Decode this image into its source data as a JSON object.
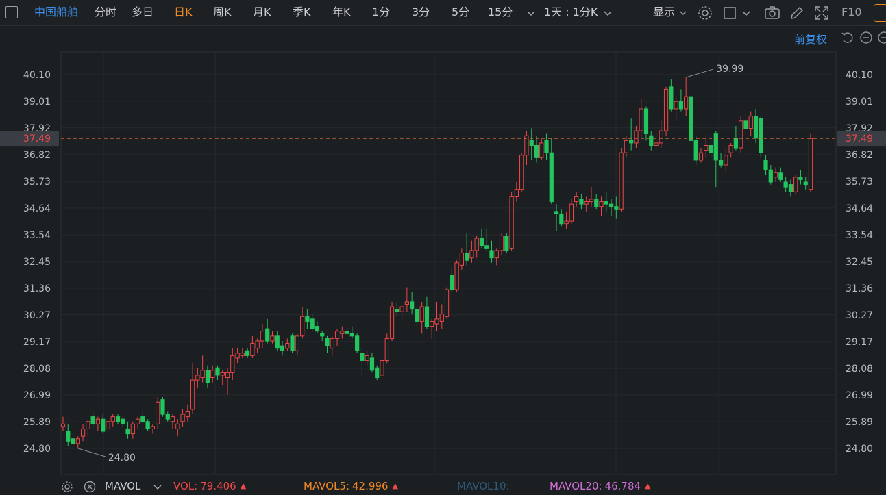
{
  "toolbar": {
    "stock_name": "中国船舶",
    "tabs": [
      "分时",
      "多日",
      "日K",
      "周K",
      "月K",
      "季K",
      "年K",
      "1分",
      "3分",
      "5分",
      "15分"
    ],
    "active_tab": "日K",
    "period_combo": "1天 : 1分K",
    "display_label": "显示",
    "f10_label": "F10"
  },
  "adjust_label": "前复权",
  "chart_data": {
    "type": "candlestick",
    "y_ticks": [
      "40.10",
      "39.01",
      "37.92",
      "36.82",
      "35.73",
      "34.64",
      "33.54",
      "32.45",
      "31.36",
      "30.27",
      "29.17",
      "28.08",
      "26.99",
      "25.89",
      "24.80"
    ],
    "ylim": [
      24.8,
      40.1
    ],
    "last_price": "37.49",
    "high_label": "39.99",
    "low_label": "24.80",
    "colors": {
      "up": "#f04747",
      "down": "#22c55e"
    },
    "candles": [
      {
        "o": 25.7,
        "h": 26.1,
        "l": 25.5,
        "c": 25.8
      },
      {
        "o": 25.5,
        "h": 25.8,
        "l": 24.9,
        "c": 25.1
      },
      {
        "o": 25.2,
        "h": 25.6,
        "l": 24.9,
        "c": 25.0
      },
      {
        "o": 25.0,
        "h": 25.3,
        "l": 24.8,
        "c": 25.2
      },
      {
        "o": 25.3,
        "h": 25.8,
        "l": 25.1,
        "c": 25.6
      },
      {
        "o": 25.6,
        "h": 26.0,
        "l": 25.3,
        "c": 25.9
      },
      {
        "o": 26.1,
        "h": 26.3,
        "l": 25.7,
        "c": 25.8
      },
      {
        "o": 25.8,
        "h": 26.1,
        "l": 25.5,
        "c": 26.0
      },
      {
        "o": 26.0,
        "h": 26.2,
        "l": 25.4,
        "c": 25.5
      },
      {
        "o": 25.6,
        "h": 26.0,
        "l": 25.4,
        "c": 25.9
      },
      {
        "o": 25.9,
        "h": 26.2,
        "l": 25.7,
        "c": 26.1
      },
      {
        "o": 26.1,
        "h": 26.2,
        "l": 25.8,
        "c": 25.9
      },
      {
        "o": 26.0,
        "h": 26.1,
        "l": 25.7,
        "c": 25.8
      },
      {
        "o": 25.6,
        "h": 25.9,
        "l": 25.2,
        "c": 25.4
      },
      {
        "o": 25.4,
        "h": 25.9,
        "l": 25.2,
        "c": 25.8
      },
      {
        "o": 25.8,
        "h": 26.1,
        "l": 25.6,
        "c": 26.0
      },
      {
        "o": 26.1,
        "h": 26.3,
        "l": 25.8,
        "c": 25.9
      },
      {
        "o": 25.9,
        "h": 26.0,
        "l": 25.5,
        "c": 25.6
      },
      {
        "o": 25.6,
        "h": 25.8,
        "l": 25.4,
        "c": 25.7
      },
      {
        "o": 25.8,
        "h": 26.9,
        "l": 25.6,
        "c": 26.7
      },
      {
        "o": 26.8,
        "h": 26.9,
        "l": 26.1,
        "c": 26.2
      },
      {
        "o": 26.2,
        "h": 26.3,
        "l": 25.9,
        "c": 26.0
      },
      {
        "o": 25.9,
        "h": 26.2,
        "l": 25.6,
        "c": 26.1
      },
      {
        "o": 25.6,
        "h": 26.0,
        "l": 25.3,
        "c": 25.8
      },
      {
        "o": 25.9,
        "h": 26.4,
        "l": 25.7,
        "c": 26.2
      },
      {
        "o": 26.1,
        "h": 26.6,
        "l": 25.9,
        "c": 26.3
      },
      {
        "o": 26.4,
        "h": 28.3,
        "l": 26.2,
        "c": 27.6
      },
      {
        "o": 27.6,
        "h": 28.1,
        "l": 27.3,
        "c": 27.8
      },
      {
        "o": 27.7,
        "h": 28.6,
        "l": 27.5,
        "c": 28.0
      },
      {
        "o": 28.0,
        "h": 28.2,
        "l": 27.3,
        "c": 27.5
      },
      {
        "o": 27.7,
        "h": 28.2,
        "l": 27.5,
        "c": 28.0
      },
      {
        "o": 28.1,
        "h": 28.2,
        "l": 27.6,
        "c": 27.8
      },
      {
        "o": 27.8,
        "h": 28.0,
        "l": 27.4,
        "c": 27.9
      },
      {
        "o": 27.7,
        "h": 28.1,
        "l": 27.0,
        "c": 27.9
      },
      {
        "o": 27.9,
        "h": 28.9,
        "l": 27.6,
        "c": 28.6
      },
      {
        "o": 28.5,
        "h": 28.9,
        "l": 28.3,
        "c": 28.7
      },
      {
        "o": 28.6,
        "h": 28.9,
        "l": 28.5,
        "c": 28.7
      },
      {
        "o": 28.8,
        "h": 28.9,
        "l": 28.5,
        "c": 28.6
      },
      {
        "o": 28.6,
        "h": 29.4,
        "l": 28.5,
        "c": 29.1
      },
      {
        "o": 28.9,
        "h": 29.3,
        "l": 28.7,
        "c": 29.2
      },
      {
        "o": 29.2,
        "h": 29.9,
        "l": 28.9,
        "c": 29.6
      },
      {
        "o": 29.7,
        "h": 30.1,
        "l": 29.1,
        "c": 29.2
      },
      {
        "o": 29.2,
        "h": 29.6,
        "l": 29.1,
        "c": 29.4
      },
      {
        "o": 29.4,
        "h": 29.6,
        "l": 28.8,
        "c": 28.9
      },
      {
        "o": 29.0,
        "h": 29.2,
        "l": 28.6,
        "c": 28.8
      },
      {
        "o": 28.9,
        "h": 29.3,
        "l": 28.8,
        "c": 29.1
      },
      {
        "o": 29.4,
        "h": 29.5,
        "l": 28.7,
        "c": 28.8
      },
      {
        "o": 28.8,
        "h": 29.5,
        "l": 28.6,
        "c": 29.4
      },
      {
        "o": 29.4,
        "h": 30.6,
        "l": 29.3,
        "c": 30.2
      },
      {
        "o": 30.2,
        "h": 30.5,
        "l": 29.7,
        "c": 30.0
      },
      {
        "o": 30.1,
        "h": 30.3,
        "l": 29.6,
        "c": 29.7
      },
      {
        "o": 29.8,
        "h": 30.0,
        "l": 29.5,
        "c": 29.6
      },
      {
        "o": 29.5,
        "h": 29.6,
        "l": 29.2,
        "c": 29.4
      },
      {
        "o": 29.3,
        "h": 29.4,
        "l": 28.7,
        "c": 29.0
      },
      {
        "o": 28.9,
        "h": 29.4,
        "l": 28.6,
        "c": 29.3
      },
      {
        "o": 29.3,
        "h": 29.7,
        "l": 29.0,
        "c": 29.6
      },
      {
        "o": 29.5,
        "h": 29.8,
        "l": 29.3,
        "c": 29.6
      },
      {
        "o": 29.6,
        "h": 29.8,
        "l": 29.4,
        "c": 29.5
      },
      {
        "o": 29.5,
        "h": 29.8,
        "l": 29.3,
        "c": 29.4
      },
      {
        "o": 29.4,
        "h": 29.5,
        "l": 28.7,
        "c": 28.8
      },
      {
        "o": 28.7,
        "h": 28.9,
        "l": 27.8,
        "c": 28.4
      },
      {
        "o": 28.4,
        "h": 28.8,
        "l": 28.2,
        "c": 28.6
      },
      {
        "o": 28.5,
        "h": 28.7,
        "l": 27.9,
        "c": 28.0
      },
      {
        "o": 28.1,
        "h": 28.2,
        "l": 27.6,
        "c": 27.7
      },
      {
        "o": 27.8,
        "h": 28.5,
        "l": 27.7,
        "c": 28.4
      },
      {
        "o": 28.4,
        "h": 29.5,
        "l": 28.3,
        "c": 29.3
      },
      {
        "o": 29.3,
        "h": 30.8,
        "l": 29.2,
        "c": 30.6
      },
      {
        "o": 30.5,
        "h": 30.8,
        "l": 30.2,
        "c": 30.4
      },
      {
        "o": 30.4,
        "h": 30.7,
        "l": 30.1,
        "c": 30.6
      },
      {
        "o": 30.7,
        "h": 31.4,
        "l": 30.4,
        "c": 30.8
      },
      {
        "o": 30.8,
        "h": 31.2,
        "l": 30.3,
        "c": 30.5
      },
      {
        "o": 30.5,
        "h": 30.6,
        "l": 29.8,
        "c": 30.0
      },
      {
        "o": 30.0,
        "h": 30.8,
        "l": 29.5,
        "c": 30.6
      },
      {
        "o": 30.6,
        "h": 31.0,
        "l": 29.7,
        "c": 29.8
      },
      {
        "o": 29.8,
        "h": 30.1,
        "l": 29.3,
        "c": 30.0
      },
      {
        "o": 29.9,
        "h": 30.8,
        "l": 29.6,
        "c": 30.1
      },
      {
        "o": 30.0,
        "h": 30.7,
        "l": 29.7,
        "c": 30.3
      },
      {
        "o": 30.2,
        "h": 31.4,
        "l": 30.1,
        "c": 31.3
      },
      {
        "o": 31.9,
        "h": 32.2,
        "l": 31.2,
        "c": 31.3
      },
      {
        "o": 31.3,
        "h": 32.5,
        "l": 31.2,
        "c": 32.4
      },
      {
        "o": 32.3,
        "h": 33.0,
        "l": 32.1,
        "c": 32.8
      },
      {
        "o": 32.8,
        "h": 33.6,
        "l": 32.3,
        "c": 32.5
      },
      {
        "o": 32.6,
        "h": 33.3,
        "l": 32.4,
        "c": 32.9
      },
      {
        "o": 32.9,
        "h": 33.5,
        "l": 32.6,
        "c": 33.4
      },
      {
        "o": 33.4,
        "h": 33.8,
        "l": 33.0,
        "c": 33.1
      },
      {
        "o": 33.1,
        "h": 33.8,
        "l": 32.9,
        "c": 33.0
      },
      {
        "o": 32.9,
        "h": 33.3,
        "l": 32.4,
        "c": 32.6
      },
      {
        "o": 32.6,
        "h": 33.0,
        "l": 32.3,
        "c": 32.9
      },
      {
        "o": 32.9,
        "h": 33.6,
        "l": 32.7,
        "c": 33.5
      },
      {
        "o": 33.5,
        "h": 33.6,
        "l": 32.8,
        "c": 32.9
      },
      {
        "o": 33.0,
        "h": 35.3,
        "l": 32.9,
        "c": 35.1
      },
      {
        "o": 35.1,
        "h": 35.7,
        "l": 34.9,
        "c": 35.4
      },
      {
        "o": 35.4,
        "h": 36.9,
        "l": 35.3,
        "c": 36.8
      },
      {
        "o": 36.8,
        "h": 37.8,
        "l": 36.4,
        "c": 37.6
      },
      {
        "o": 37.4,
        "h": 37.9,
        "l": 36.6,
        "c": 37.2
      },
      {
        "o": 37.2,
        "h": 37.6,
        "l": 36.5,
        "c": 36.7
      },
      {
        "o": 36.7,
        "h": 37.5,
        "l": 36.6,
        "c": 37.3
      },
      {
        "o": 37.4,
        "h": 37.7,
        "l": 36.6,
        "c": 36.9
      },
      {
        "o": 36.9,
        "h": 37.5,
        "l": 34.8,
        "c": 34.9
      },
      {
        "o": 34.5,
        "h": 34.8,
        "l": 33.7,
        "c": 34.4
      },
      {
        "o": 34.4,
        "h": 34.6,
        "l": 33.9,
        "c": 34.0
      },
      {
        "o": 34.0,
        "h": 34.5,
        "l": 33.8,
        "c": 34.1
      },
      {
        "o": 34.1,
        "h": 35.0,
        "l": 34.0,
        "c": 34.8
      },
      {
        "o": 34.9,
        "h": 35.3,
        "l": 34.7,
        "c": 35.1
      },
      {
        "o": 35.0,
        "h": 35.2,
        "l": 34.6,
        "c": 34.8
      },
      {
        "o": 34.8,
        "h": 35.1,
        "l": 34.5,
        "c": 34.9
      },
      {
        "o": 34.9,
        "h": 35.5,
        "l": 34.7,
        "c": 35.0
      },
      {
        "o": 35.0,
        "h": 35.2,
        "l": 34.6,
        "c": 34.7
      },
      {
        "o": 34.7,
        "h": 35.1,
        "l": 34.3,
        "c": 34.9
      },
      {
        "o": 34.9,
        "h": 35.3,
        "l": 34.5,
        "c": 34.8
      },
      {
        "o": 34.8,
        "h": 35.0,
        "l": 34.3,
        "c": 34.7
      },
      {
        "o": 34.7,
        "h": 35.1,
        "l": 34.2,
        "c": 34.6
      },
      {
        "o": 34.6,
        "h": 37.1,
        "l": 34.5,
        "c": 36.9
      },
      {
        "o": 36.9,
        "h": 37.6,
        "l": 36.7,
        "c": 37.4
      },
      {
        "o": 37.4,
        "h": 38.3,
        "l": 37.0,
        "c": 37.3
      },
      {
        "o": 37.3,
        "h": 38.0,
        "l": 37.1,
        "c": 37.8
      },
      {
        "o": 37.8,
        "h": 39.1,
        "l": 37.5,
        "c": 38.7
      },
      {
        "o": 38.7,
        "h": 38.8,
        "l": 37.4,
        "c": 37.7
      },
      {
        "o": 37.6,
        "h": 37.8,
        "l": 37.0,
        "c": 37.2
      },
      {
        "o": 37.2,
        "h": 37.8,
        "l": 37.0,
        "c": 37.3
      },
      {
        "o": 37.3,
        "h": 38.2,
        "l": 37.1,
        "c": 37.8
      },
      {
        "o": 37.8,
        "h": 39.6,
        "l": 37.6,
        "c": 39.5
      },
      {
        "o": 39.6,
        "h": 39.9,
        "l": 38.6,
        "c": 38.7
      },
      {
        "o": 38.7,
        "h": 39.2,
        "l": 38.2,
        "c": 39.0
      },
      {
        "o": 39.0,
        "h": 39.5,
        "l": 38.6,
        "c": 38.7
      },
      {
        "o": 38.7,
        "h": 39.99,
        "l": 38.4,
        "c": 39.2
      },
      {
        "o": 39.2,
        "h": 39.4,
        "l": 37.3,
        "c": 37.4
      },
      {
        "o": 37.4,
        "h": 37.6,
        "l": 36.4,
        "c": 36.6
      },
      {
        "o": 36.6,
        "h": 37.1,
        "l": 36.5,
        "c": 36.9
      },
      {
        "o": 37.0,
        "h": 37.5,
        "l": 36.7,
        "c": 37.2
      },
      {
        "o": 37.2,
        "h": 37.7,
        "l": 36.7,
        "c": 36.9
      },
      {
        "o": 37.7,
        "h": 37.8,
        "l": 35.5,
        "c": 36.6
      },
      {
        "o": 36.6,
        "h": 36.9,
        "l": 36.3,
        "c": 36.4
      },
      {
        "o": 36.4,
        "h": 37.1,
        "l": 36.1,
        "c": 36.8
      },
      {
        "o": 36.9,
        "h": 37.3,
        "l": 36.7,
        "c": 37.2
      },
      {
        "o": 37.5,
        "h": 38.0,
        "l": 37.0,
        "c": 37.1
      },
      {
        "o": 37.1,
        "h": 38.4,
        "l": 36.9,
        "c": 38.2
      },
      {
        "o": 38.2,
        "h": 38.5,
        "l": 37.7,
        "c": 37.9
      },
      {
        "o": 37.9,
        "h": 38.6,
        "l": 37.6,
        "c": 38.4
      },
      {
        "o": 38.4,
        "h": 38.7,
        "l": 37.3,
        "c": 37.5
      },
      {
        "o": 38.3,
        "h": 38.4,
        "l": 36.7,
        "c": 36.9
      },
      {
        "o": 36.6,
        "h": 36.8,
        "l": 36.0,
        "c": 36.2
      },
      {
        "o": 36.2,
        "h": 36.4,
        "l": 35.6,
        "c": 35.7
      },
      {
        "o": 35.9,
        "h": 36.3,
        "l": 35.7,
        "c": 36.1
      },
      {
        "o": 36.1,
        "h": 36.3,
        "l": 35.7,
        "c": 35.8
      },
      {
        "o": 35.7,
        "h": 35.9,
        "l": 35.3,
        "c": 35.5
      },
      {
        "o": 35.6,
        "h": 35.8,
        "l": 35.1,
        "c": 35.3
      },
      {
        "o": 35.3,
        "h": 36.0,
        "l": 35.2,
        "c": 35.9
      },
      {
        "o": 35.9,
        "h": 36.2,
        "l": 35.6,
        "c": 35.8
      },
      {
        "o": 35.7,
        "h": 35.9,
        "l": 35.4,
        "c": 35.6
      },
      {
        "o": 35.4,
        "h": 37.7,
        "l": 35.3,
        "c": 37.49
      }
    ]
  },
  "indicators": {
    "mavol_label": "MAVOL",
    "vol_label": "VOL:",
    "vol_value": "79.406",
    "mavol5_label": "MAVOL5:",
    "mavol5_value": "42.996",
    "mavol10_label": "MAVOL10:",
    "mavol20_label": "MAVOL20:",
    "mavol20_value": "46.784"
  }
}
